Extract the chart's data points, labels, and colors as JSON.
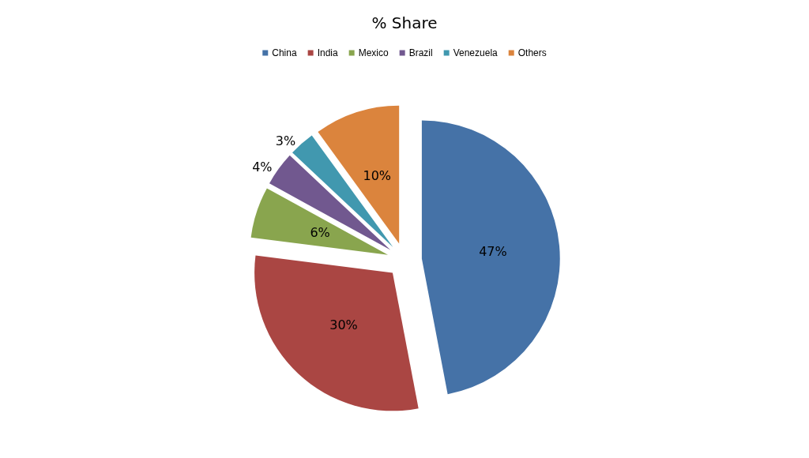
{
  "chart_data": {
    "type": "pie",
    "title": "% Share",
    "categories": [
      "China",
      "India",
      "Mexico",
      "Brazil",
      "Venezuela",
      "Others"
    ],
    "values": [
      47,
      30,
      6,
      4,
      3,
      10
    ],
    "value_labels": [
      "47%",
      "30%",
      "6%",
      "4%",
      "3%",
      "10%"
    ],
    "colors": [
      "#4572a7",
      "#aa4643",
      "#89a54e",
      "#71588f",
      "#4198af",
      "#db843d"
    ],
    "legend": "top"
  }
}
